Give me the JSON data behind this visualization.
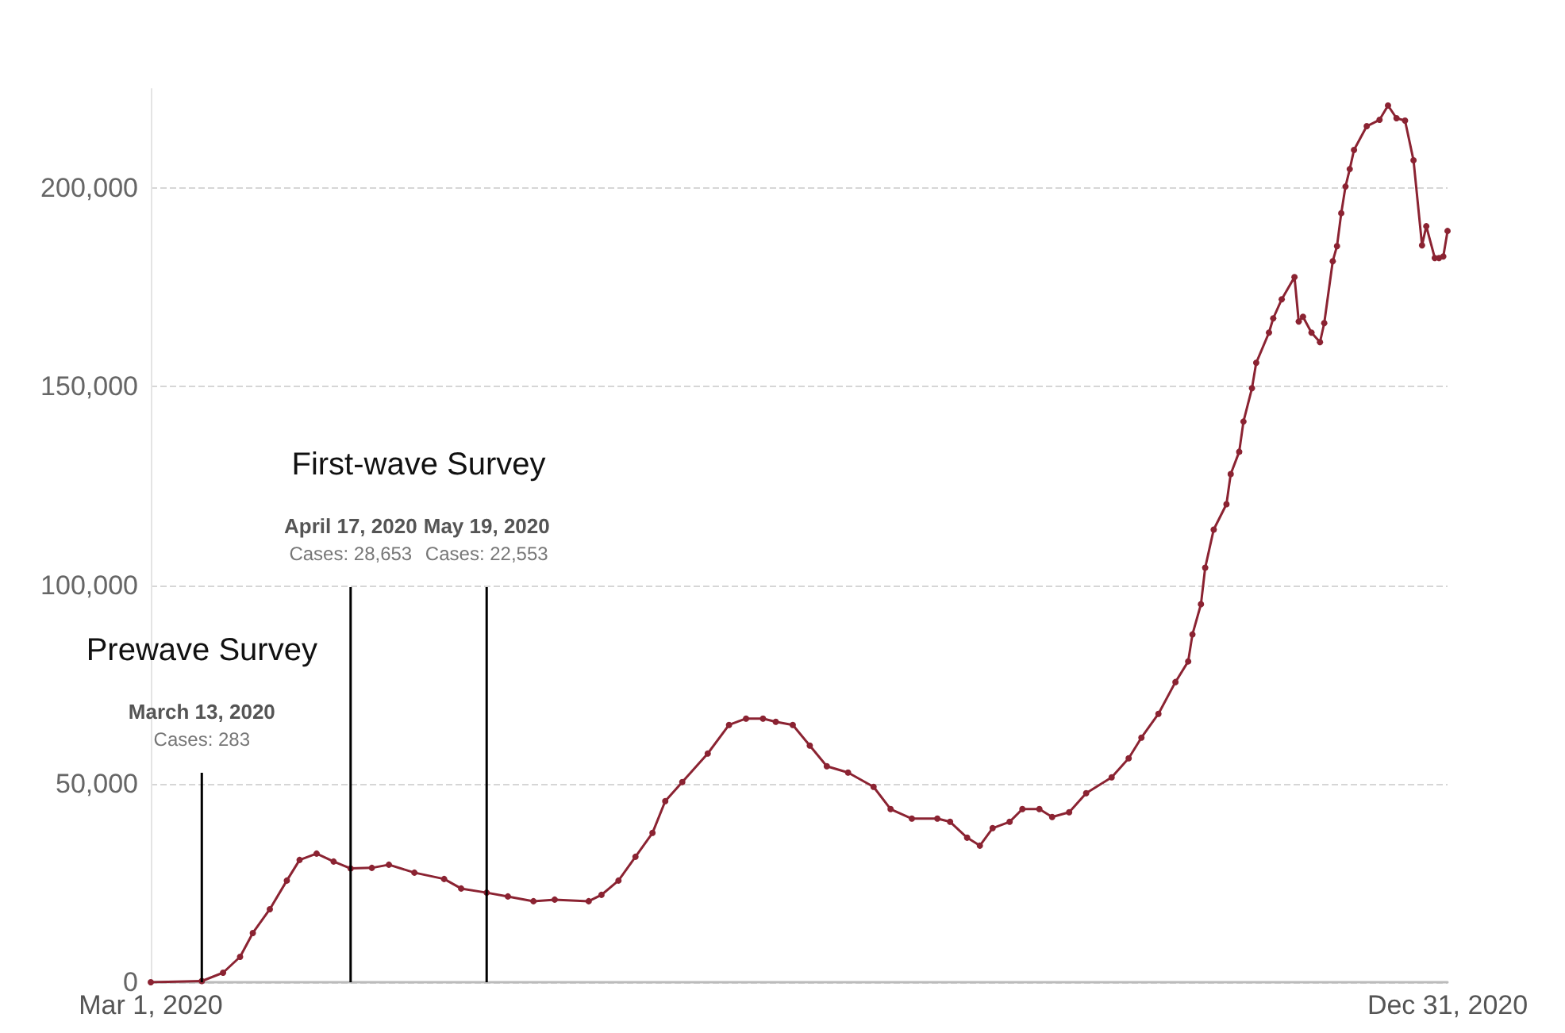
{
  "chart_data": {
    "type": "line",
    "x": [
      "2020-03-01",
      "2020-03-13",
      "2020-03-18",
      "2020-03-22",
      "2020-03-25",
      "2020-03-29",
      "2020-04-02",
      "2020-04-05",
      "2020-04-09",
      "2020-04-13",
      "2020-04-17",
      "2020-04-22",
      "2020-04-26",
      "2020-05-02",
      "2020-05-09",
      "2020-05-13",
      "2020-05-19",
      "2020-05-24",
      "2020-05-30",
      "2020-06-04",
      "2020-06-12",
      "2020-06-15",
      "2020-06-19",
      "2020-06-23",
      "2020-06-27",
      "2020-06-30",
      "2020-07-04",
      "2020-07-10",
      "2020-07-15",
      "2020-07-19",
      "2020-07-23",
      "2020-07-26",
      "2020-07-30",
      "2020-08-03",
      "2020-08-07",
      "2020-08-12",
      "2020-08-18",
      "2020-08-22",
      "2020-08-27",
      "2020-09-02",
      "2020-09-05",
      "2020-09-09",
      "2020-09-12",
      "2020-09-15",
      "2020-09-19",
      "2020-09-22",
      "2020-09-26",
      "2020-09-29",
      "2020-10-03",
      "2020-10-07",
      "2020-10-13",
      "2020-10-17",
      "2020-10-20",
      "2020-10-24",
      "2020-10-28",
      "2020-10-31",
      "2020-11-01",
      "2020-11-03",
      "2020-11-04",
      "2020-11-06",
      "2020-11-09",
      "2020-11-10",
      "2020-11-12",
      "2020-11-13",
      "2020-11-15",
      "2020-11-16",
      "2020-11-19",
      "2020-11-20",
      "2020-11-22",
      "2020-11-25",
      "2020-11-26",
      "2020-11-27",
      "2020-11-29",
      "2020-12-01",
      "2020-12-02",
      "2020-12-04",
      "2020-12-05",
      "2020-12-06",
      "2020-12-07",
      "2020-12-08",
      "2020-12-09",
      "2020-12-12",
      "2020-12-15",
      "2020-12-17",
      "2020-12-19",
      "2020-12-21",
      "2020-12-23",
      "2020-12-25",
      "2020-12-26",
      "2020-12-28",
      "2020-12-29",
      "2020-12-30",
      "2020-12-31"
    ],
    "series": [
      {
        "color": "#8b2332",
        "values": [
          0,
          283,
          2400,
          6400,
          12400,
          18400,
          25600,
          30800,
          32400,
          30400,
          28653,
          28800,
          29600,
          27600,
          26000,
          23600,
          22553,
          21600,
          20400,
          20800,
          20400,
          22000,
          25600,
          31600,
          37600,
          45600,
          50400,
          57600,
          64800,
          66400,
          66400,
          65600,
          64800,
          59600,
          54400,
          52800,
          49200,
          43600,
          41200,
          41200,
          40400,
          36400,
          34400,
          38800,
          40400,
          43600,
          43600,
          41600,
          42800,
          47600,
          51600,
          56400,
          61600,
          67600,
          75600,
          80800,
          87600,
          95200,
          104400,
          114000,
          120400,
          128000,
          133600,
          141200,
          149600,
          156000,
          163600,
          167200,
          172000,
          177600,
          166400,
          167600,
          163600,
          161200,
          166000,
          181600,
          185400,
          193700,
          200400,
          204800,
          209600,
          215600,
          217200,
          220800,
          217600,
          217000,
          207000,
          185600,
          190400,
          182400,
          182400,
          182800,
          189200
        ]
      }
    ],
    "xlim": [
      "2020-03-01",
      "2020-12-31"
    ],
    "xticks": [
      {
        "value": "2020-03-01",
        "label": "Mar 1, 2020"
      },
      {
        "value": "2020-12-31",
        "label": "Dec 31, 2020"
      }
    ],
    "ylim": [
      0,
      225000
    ],
    "yticks": [
      {
        "value": 0,
        "label": "0"
      },
      {
        "value": 50000,
        "label": "50,000"
      },
      {
        "value": 100000,
        "label": "100,000"
      },
      {
        "value": 150000,
        "label": "150,000"
      },
      {
        "value": 200000,
        "label": "200,000"
      }
    ],
    "grid": "y",
    "marker": "circle",
    "line_style": "solid",
    "ref_lines": [
      {
        "axis": "x",
        "value": "2020-03-13",
        "label": "March 13, 2020\nCases: 283",
        "color": "#000000"
      },
      {
        "axis": "x",
        "value": "2020-04-17",
        "label": "April 17, 2020\nCases: 28,653",
        "color": "#000000"
      },
      {
        "axis": "x",
        "value": "2020-05-19",
        "label": "May 19, 2020\nCases: 22,553",
        "color": "#000000"
      }
    ],
    "annotations": [
      "Prewave Survey",
      "First-wave Survey"
    ]
  }
}
